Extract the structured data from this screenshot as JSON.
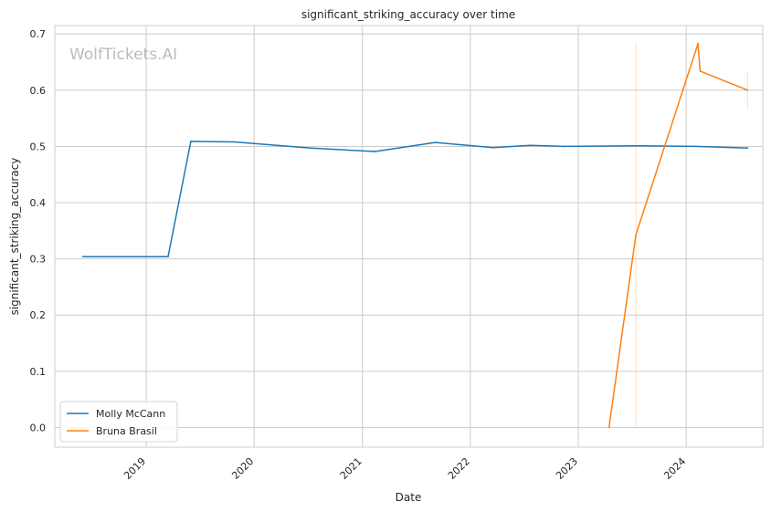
{
  "chart_data": {
    "type": "line",
    "title": "significant_striking_accuracy over time",
    "xlabel": "Date",
    "ylabel": "significant_striking_accuracy",
    "watermark": "WolfTickets.AI",
    "grid": true,
    "legend_position": "lower-left",
    "xlim": [
      "2018-02-26",
      "2024-09-16"
    ],
    "ylim": [
      -0.035,
      0.715
    ],
    "x_ticks": [
      {
        "label": "2019",
        "date": "2019-01-01"
      },
      {
        "label": "2020",
        "date": "2020-01-01"
      },
      {
        "label": "2021",
        "date": "2021-01-01"
      },
      {
        "label": "2022",
        "date": "2022-01-01"
      },
      {
        "label": "2023",
        "date": "2023-01-01"
      },
      {
        "label": "2024",
        "date": "2024-01-01"
      }
    ],
    "y_ticks": [
      0.0,
      0.1,
      0.2,
      0.3,
      0.4,
      0.5,
      0.6,
      0.7
    ],
    "y_tick_labels": [
      "0.0",
      "0.1",
      "0.2",
      "0.3",
      "0.4",
      "0.5",
      "0.6",
      "0.7"
    ],
    "series": [
      {
        "name": "Molly McCann",
        "color": "#1f77b4",
        "points": [
          {
            "x": "2018-06-01",
            "y": 0.304
          },
          {
            "x": "2019-03-16",
            "y": 0.304
          },
          {
            "x": "2019-06-01",
            "y": 0.509
          },
          {
            "x": "2019-10-26",
            "y": 0.508
          },
          {
            "x": "2020-07-11",
            "y": 0.497
          },
          {
            "x": "2021-02-13",
            "y": 0.491
          },
          {
            "x": "2021-09-04",
            "y": 0.507
          },
          {
            "x": "2022-03-19",
            "y": 0.498
          },
          {
            "x": "2022-07-23",
            "y": 0.502
          },
          {
            "x": "2022-11-12",
            "y": 0.5
          },
          {
            "x": "2023-07-22",
            "y": 0.501
          },
          {
            "x": "2024-02-03",
            "y": 0.5
          },
          {
            "x": "2024-07-27",
            "y": 0.497
          }
        ]
      },
      {
        "name": "Bruna Brasil",
        "color": "#ff7f0e",
        "points": [
          {
            "x": "2023-04-15",
            "y": 0.0
          },
          {
            "x": "2023-07-15",
            "y": 0.343
          },
          {
            "x": "2024-02-10",
            "y": 0.683
          },
          {
            "x": "2024-02-17",
            "y": 0.634
          },
          {
            "x": "2024-07-27",
            "y": 0.6
          }
        ],
        "error_bands": [
          {
            "x": "2023-07-15",
            "low": 0.0,
            "high": 0.683
          },
          {
            "x": "2024-07-27",
            "low": 0.566,
            "high": 0.634
          }
        ]
      }
    ]
  }
}
